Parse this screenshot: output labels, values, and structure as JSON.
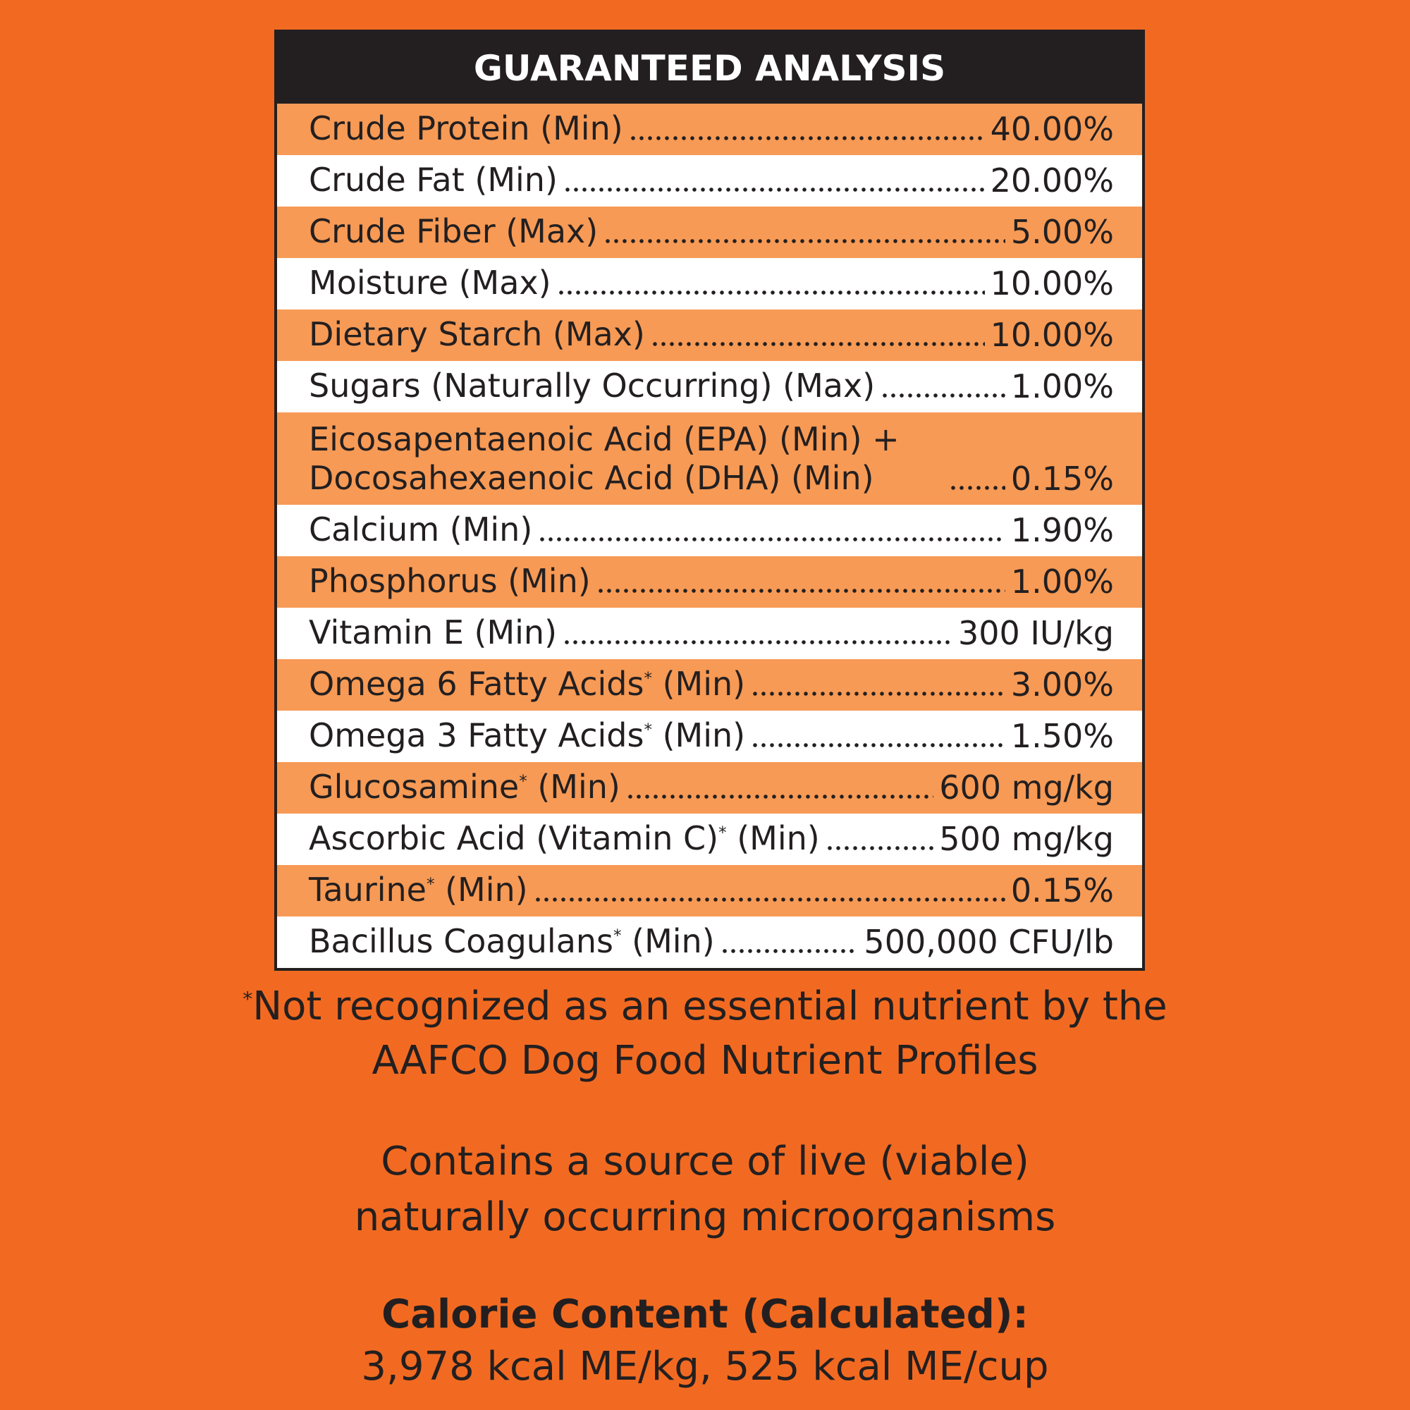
{
  "header": {
    "title": "GUARANTEED ANALYSIS"
  },
  "table": {
    "rows": [
      [
        "Crude Protein (Min)",
        "40.00%"
      ],
      [
        "Crude Fat (Min)",
        "20.00%"
      ],
      [
        "Crude Fiber (Max)",
        "5.00%"
      ],
      [
        "Moisture (Max)",
        "10.00%"
      ],
      [
        "Dietary Starch (Max)",
        "10.00%"
      ],
      [
        "Sugars (Naturally Occurring) (Max)",
        "1.00%"
      ],
      [
        "Eicosapentaenoic Acid (EPA) (Min) + Docosahexaenoic Acid (DHA) (Min)",
        "0.15%"
      ],
      [
        "Calcium (Min)",
        "1.90%"
      ],
      [
        "Phosphorus (Min)",
        "1.00%"
      ],
      [
        "Vitamin E (Min)",
        "300 IU/kg"
      ],
      [
        "Omega 6 Fatty Acids* (Min)",
        "3.00%"
      ],
      [
        "Omega 3 Fatty Acids* (Min)",
        "1.50%"
      ],
      [
        "Glucosamine* (Min)",
        "600 mg/kg"
      ],
      [
        "Ascorbic Acid (Vitamin C)* (Min)",
        "500 mg/kg"
      ],
      [
        "Taurine* (Min)",
        "0.15%"
      ],
      [
        "Bacillus Coagulans* (Min)",
        "500,000 CFU/lb"
      ]
    ]
  },
  "footnote": [
    "*Not recognized as an essential nutrient by the",
    "AAFCO Dog Food Nutrient Profiles"
  ],
  "probiotic_note": [
    "Contains a source of live (viable)",
    "naturally occurring microorganisms"
  ],
  "calorie": {
    "heading": "Calorie Content (Calculated):",
    "value": "3,978 kcal ME/kg, 525 kcal ME/cup"
  }
}
